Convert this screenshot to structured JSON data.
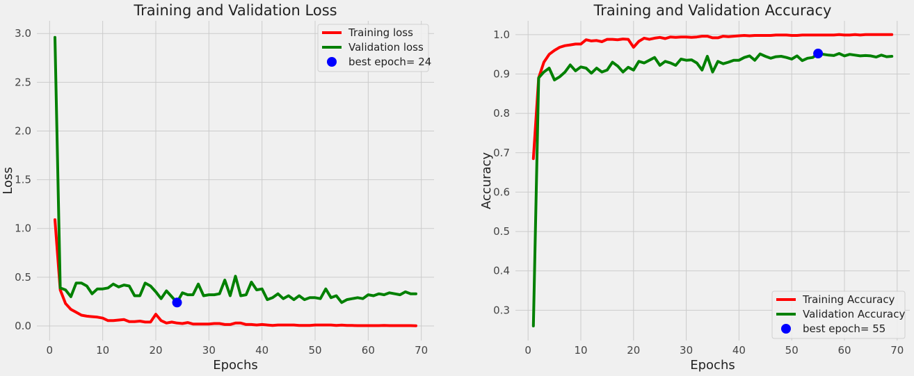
{
  "chart_data": [
    {
      "type": "line",
      "title": "Training and Validation Loss",
      "xlabel": "Epochs",
      "ylabel": "Loss",
      "xlim": [
        -2.4,
        72.4
      ],
      "ylim": [
        -0.15,
        3.13
      ],
      "xticks": [
        0,
        10,
        20,
        30,
        40,
        50,
        60,
        70
      ],
      "yticks": [
        0.0,
        0.5,
        1.0,
        1.5,
        2.0,
        2.5,
        3.0
      ],
      "ytick_decimals": 1,
      "grid": true,
      "legend_position": "top-right",
      "x": [
        1,
        2,
        3,
        4,
        5,
        6,
        7,
        8,
        9,
        10,
        11,
        12,
        13,
        14,
        15,
        16,
        17,
        18,
        19,
        20,
        21,
        22,
        23,
        24,
        25,
        26,
        27,
        28,
        29,
        30,
        31,
        32,
        33,
        34,
        35,
        36,
        37,
        38,
        39,
        40,
        41,
        42,
        43,
        44,
        45,
        46,
        47,
        48,
        49,
        50,
        51,
        52,
        53,
        54,
        55,
        56,
        57,
        58,
        59,
        60,
        61,
        62,
        63,
        64,
        65,
        66,
        67,
        68,
        69
      ],
      "series": [
        {
          "name": "Training loss",
          "color": "#ff0000",
          "values": [
            1.09,
            0.37,
            0.23,
            0.17,
            0.14,
            0.11,
            0.1,
            0.095,
            0.09,
            0.08,
            0.055,
            0.055,
            0.06,
            0.065,
            0.045,
            0.045,
            0.05,
            0.04,
            0.04,
            0.12,
            0.055,
            0.03,
            0.04,
            0.03,
            0.025,
            0.035,
            0.02,
            0.02,
            0.02,
            0.02,
            0.025,
            0.025,
            0.015,
            0.015,
            0.03,
            0.03,
            0.015,
            0.015,
            0.01,
            0.015,
            0.01,
            0.005,
            0.01,
            0.01,
            0.01,
            0.01,
            0.005,
            0.005,
            0.005,
            0.01,
            0.01,
            0.01,
            0.01,
            0.005,
            0.008,
            0.005,
            0.005,
            0.003,
            0.003,
            0.003,
            0.003,
            0.003,
            0.005,
            0.003,
            0.003,
            0.003,
            0.003,
            0.003,
            0.002
          ]
        },
        {
          "name": "Validation loss",
          "color": "#008000",
          "values": [
            2.96,
            0.39,
            0.37,
            0.3,
            0.44,
            0.44,
            0.41,
            0.33,
            0.38,
            0.38,
            0.39,
            0.43,
            0.4,
            0.42,
            0.41,
            0.31,
            0.31,
            0.44,
            0.41,
            0.35,
            0.28,
            0.36,
            0.3,
            0.24,
            0.34,
            0.32,
            0.32,
            0.43,
            0.31,
            0.32,
            0.32,
            0.33,
            0.47,
            0.31,
            0.51,
            0.31,
            0.32,
            0.45,
            0.37,
            0.38,
            0.27,
            0.29,
            0.33,
            0.28,
            0.31,
            0.27,
            0.31,
            0.27,
            0.29,
            0.29,
            0.28,
            0.38,
            0.29,
            0.31,
            0.24,
            0.27,
            0.28,
            0.29,
            0.28,
            0.32,
            0.31,
            0.33,
            0.32,
            0.34,
            0.33,
            0.32,
            0.35,
            0.33,
            0.33
          ]
        }
      ],
      "best_point": {
        "label": "best epoch= 24",
        "x": 24,
        "y": 0.24,
        "color": "#0000ff"
      }
    },
    {
      "type": "line",
      "title": "Training and Validation Accuracy",
      "xlabel": "Epochs",
      "ylabel": "Accuracy",
      "xlim": [
        -2.4,
        72.4
      ],
      "ylim": [
        0.223,
        1.035
      ],
      "xticks": [
        0,
        10,
        20,
        30,
        40,
        50,
        60,
        70
      ],
      "yticks": [
        0.3,
        0.4,
        0.5,
        0.6,
        0.7,
        0.8,
        0.9,
        1.0
      ],
      "ytick_decimals": 1,
      "grid": true,
      "legend_position": "bottom-right",
      "x": [
        1,
        2,
        3,
        4,
        5,
        6,
        7,
        8,
        9,
        10,
        11,
        12,
        13,
        14,
        15,
        16,
        17,
        18,
        19,
        20,
        21,
        22,
        23,
        24,
        25,
        26,
        27,
        28,
        29,
        30,
        31,
        32,
        33,
        34,
        35,
        36,
        37,
        38,
        39,
        40,
        41,
        42,
        43,
        44,
        45,
        46,
        47,
        48,
        49,
        50,
        51,
        52,
        53,
        54,
        55,
        56,
        57,
        58,
        59,
        60,
        61,
        62,
        63,
        64,
        65,
        66,
        67,
        68,
        69
      ],
      "series": [
        {
          "name": "Training Accuracy",
          "color": "#ff0000",
          "values": [
            0.685,
            0.89,
            0.93,
            0.95,
            0.96,
            0.968,
            0.972,
            0.974,
            0.976,
            0.976,
            0.987,
            0.984,
            0.985,
            0.982,
            0.988,
            0.988,
            0.987,
            0.989,
            0.988,
            0.968,
            0.983,
            0.991,
            0.988,
            0.991,
            0.993,
            0.99,
            0.994,
            0.993,
            0.994,
            0.994,
            0.993,
            0.994,
            0.996,
            0.996,
            0.992,
            0.992,
            0.996,
            0.995,
            0.996,
            0.997,
            0.998,
            0.997,
            0.998,
            0.998,
            0.998,
            0.998,
            0.999,
            0.999,
            0.999,
            0.998,
            0.998,
            0.999,
            0.999,
            0.999,
            0.999,
            0.999,
            0.999,
            0.999,
            1.0,
            0.999,
            0.999,
            1.0,
            0.999,
            1.0,
            1.0,
            1.0,
            1.0,
            1.0,
            1.0
          ]
        },
        {
          "name": "Validation Accuracy",
          "color": "#008000",
          "values": [
            0.26,
            0.89,
            0.905,
            0.915,
            0.885,
            0.893,
            0.905,
            0.923,
            0.908,
            0.918,
            0.915,
            0.902,
            0.915,
            0.905,
            0.91,
            0.93,
            0.92,
            0.905,
            0.917,
            0.91,
            0.932,
            0.928,
            0.935,
            0.942,
            0.922,
            0.932,
            0.928,
            0.922,
            0.938,
            0.935,
            0.936,
            0.928,
            0.91,
            0.945,
            0.905,
            0.932,
            0.926,
            0.93,
            0.935,
            0.935,
            0.942,
            0.946,
            0.935,
            0.951,
            0.945,
            0.94,
            0.944,
            0.945,
            0.942,
            0.938,
            0.946,
            0.934,
            0.94,
            0.942,
            0.952,
            0.95,
            0.948,
            0.947,
            0.952,
            0.946,
            0.95,
            0.948,
            0.946,
            0.947,
            0.946,
            0.943,
            0.948,
            0.944,
            0.945
          ]
        }
      ],
      "best_point": {
        "label": "best epoch= 55",
        "x": 55,
        "y": 0.952,
        "color": "#0000ff"
      }
    }
  ]
}
